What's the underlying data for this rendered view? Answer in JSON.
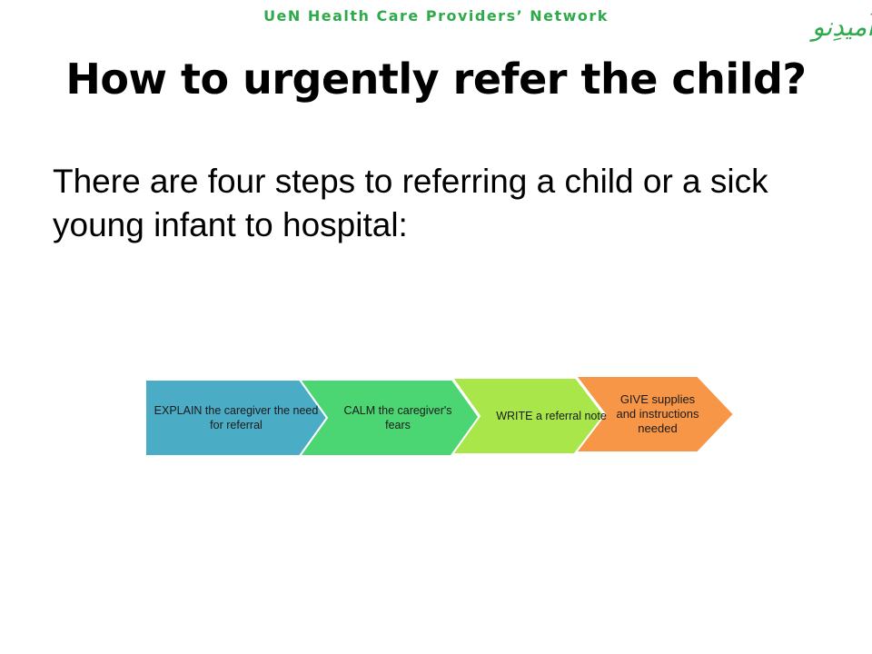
{
  "header": {
    "network_name": "UeN Health Care Providers’ Network",
    "logo_text": "اُمیدِنو"
  },
  "slide": {
    "title": "How to urgently refer the child?",
    "body": "There are four steps to referring a child or a sick young infant to hospital:"
  },
  "process": {
    "steps": [
      {
        "label": "EXPLAIN the caregiver the need for referral",
        "color": "#4bacc6"
      },
      {
        "label": "CALM the caregiver's fears",
        "color": "#4cd673"
      },
      {
        "label": "WRITE a referral note",
        "color": "#a8e64a"
      },
      {
        "label": "GIVE supplies and instructions needed",
        "color": "#f79646"
      }
    ]
  }
}
